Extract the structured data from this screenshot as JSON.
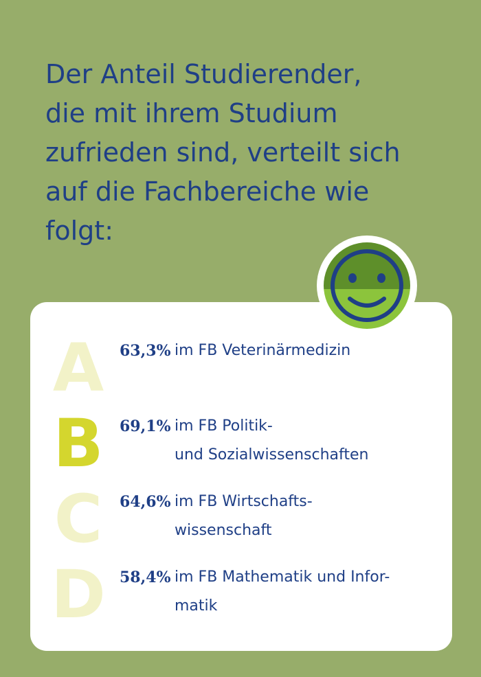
{
  "headline": {
    "lines": [
      "Der Anteil Studierender,",
      "die mit ihrem Studium",
      "zufrieden sind, verteilt sich",
      "auf die Fachbereiche wie",
      "folgt:"
    ]
  },
  "colors": {
    "background": "#97ad6a",
    "text": "#1f3f86",
    "smiley_dark": "#5e8f2a",
    "smiley_light": "#8cc43c",
    "letter_pale": "#f2f2c8",
    "letter_highlight": "#d4d62e"
  },
  "icon": "smiley-face-icon",
  "items": [
    {
      "letter": "A",
      "percent": "63,3%",
      "lines": [
        "im FB Veterinärmedizin"
      ],
      "highlight": false
    },
    {
      "letter": "B",
      "percent": "69,1%",
      "lines": [
        "im FB Politik-",
        "und Sozialwissenschaften"
      ],
      "highlight": true
    },
    {
      "letter": "C",
      "percent": "64,6%",
      "lines": [
        "im FB Wirtschafts-",
        "wissenschaft"
      ],
      "highlight": false
    },
    {
      "letter": "D",
      "percent": "58,4%",
      "lines": [
        "im FB Mathematik und Infor-",
        "matik"
      ],
      "highlight": false
    }
  ]
}
